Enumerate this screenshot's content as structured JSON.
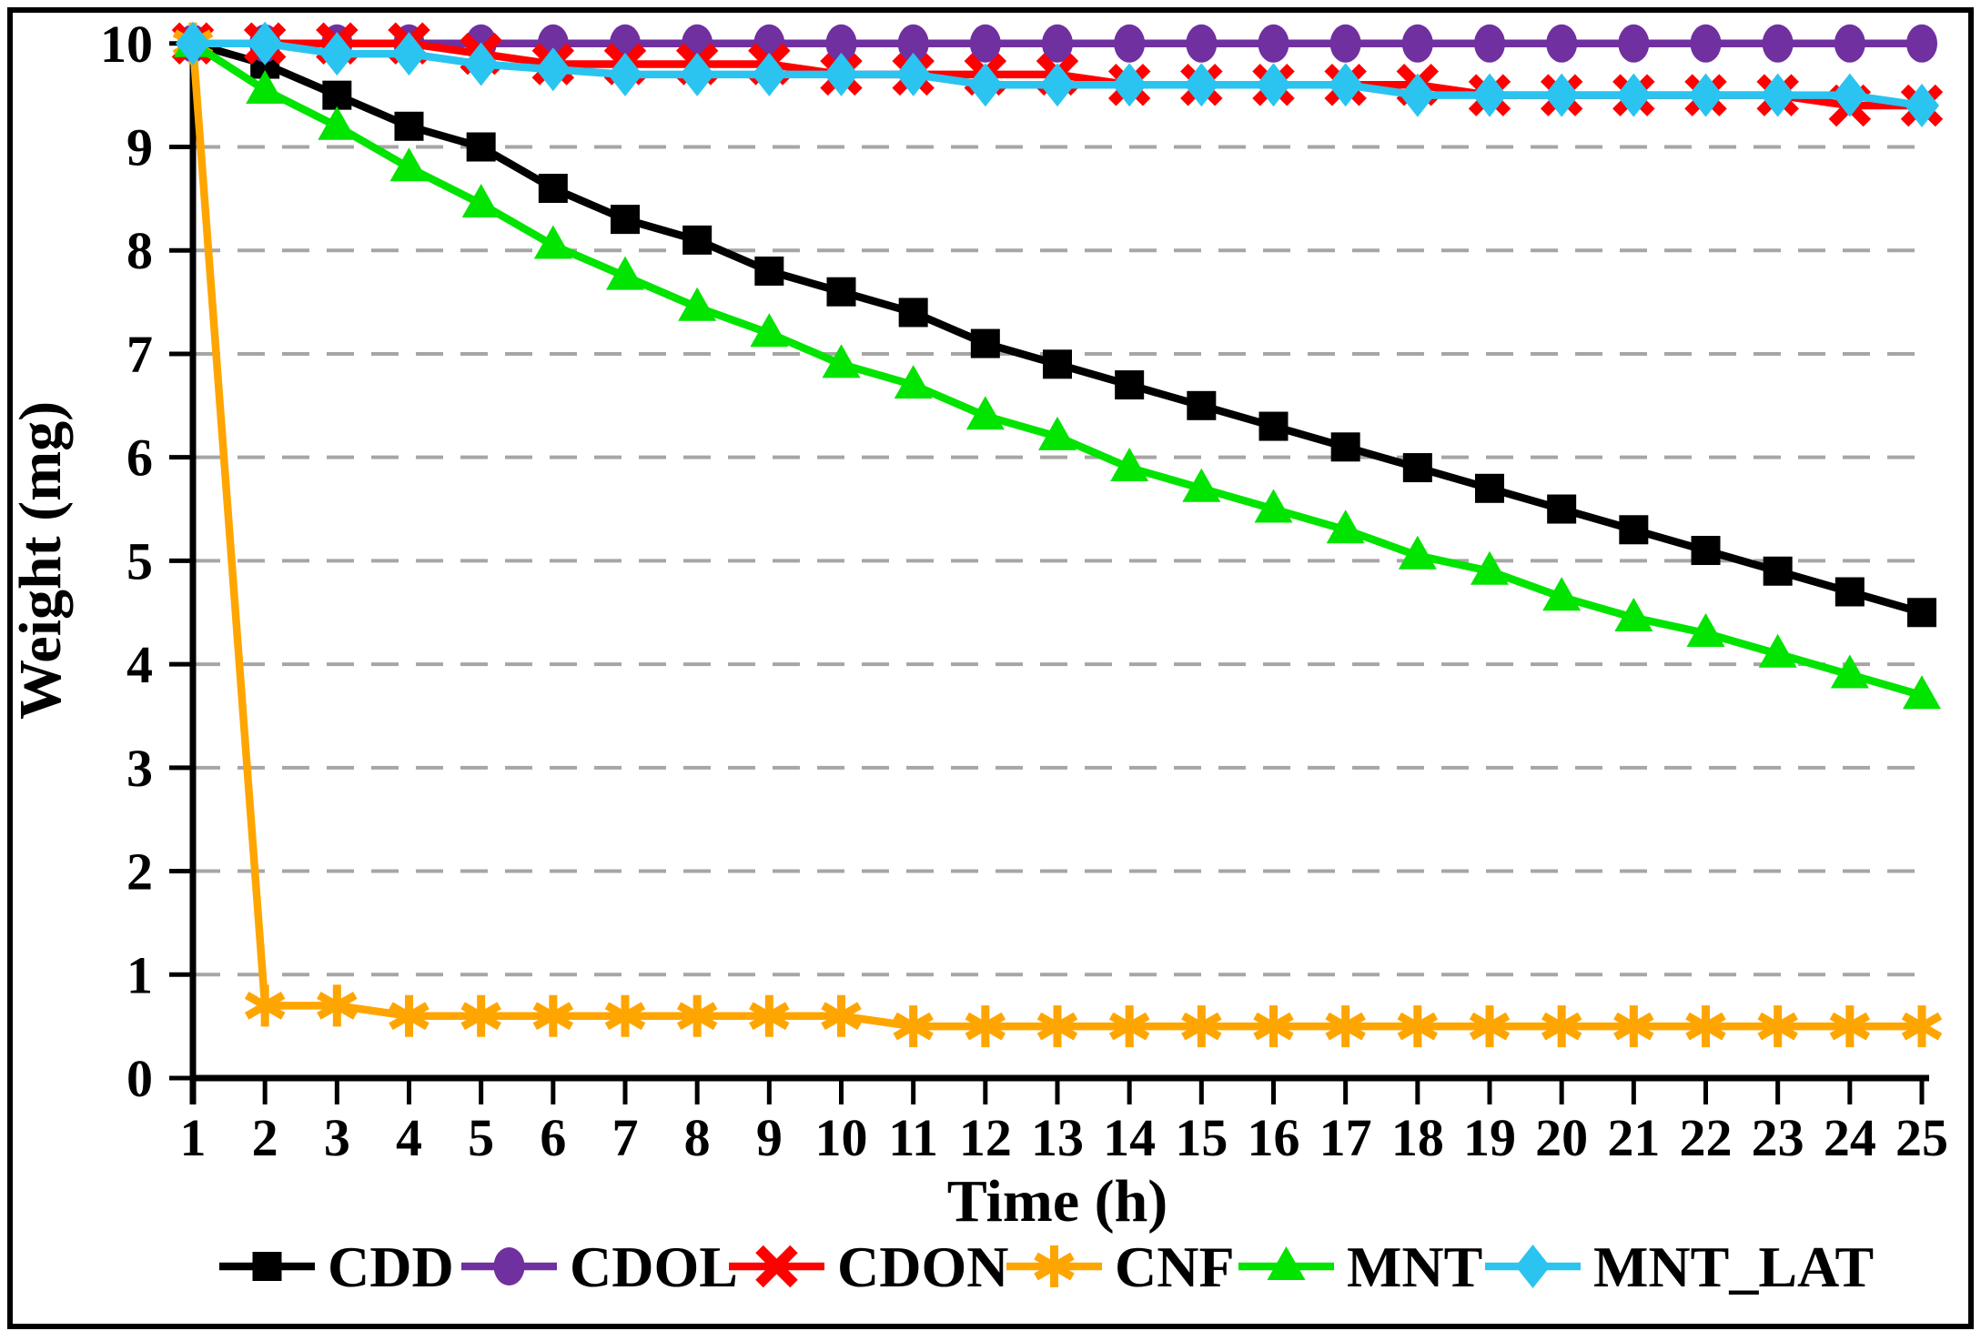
{
  "figure": {
    "background": "#ffffff",
    "border_color": "#000000",
    "border_width": 5
  },
  "chart_data": {
    "type": "line",
    "title": "",
    "xlabel": "Time (h)",
    "ylabel": "Weight (mg)",
    "x": [
      1,
      2,
      3,
      4,
      5,
      6,
      7,
      8,
      9,
      10,
      11,
      12,
      13,
      14,
      15,
      16,
      17,
      18,
      19,
      20,
      21,
      22,
      23,
      24,
      25
    ],
    "xlim": [
      1,
      25
    ],
    "ylim": [
      0,
      10
    ],
    "yticks": [
      0,
      1,
      2,
      3,
      4,
      5,
      6,
      7,
      8,
      9,
      10
    ],
    "grid": "horizontal-dashed",
    "gridline_color": "#A6A6A6",
    "axis_color": "#000000",
    "legend_position": "bottom",
    "series": [
      {
        "name": "CDD",
        "color": "#000000",
        "marker": "square",
        "values": [
          10,
          9.8,
          9.5,
          9.2,
          9,
          8.6,
          8.3,
          8.1,
          7.8,
          7.6,
          7.4,
          7.1,
          6.9,
          6.7,
          6.5,
          6.3,
          6.1,
          5.9,
          5.7,
          5.5,
          5.3,
          5.1,
          4.9,
          4.7,
          4.5
        ]
      },
      {
        "name": "CDOL",
        "color": "#7030A0",
        "marker": "circle",
        "values": [
          10,
          10,
          10,
          10,
          10,
          10,
          10,
          10,
          10,
          10,
          10,
          10,
          10,
          10,
          10,
          10,
          10,
          10,
          10,
          10,
          10,
          10,
          10,
          10,
          10
        ]
      },
      {
        "name": "CDON",
        "color": "#FF0000",
        "marker": "x",
        "values": [
          10,
          10,
          10,
          10,
          9.9,
          9.8,
          9.8,
          9.8,
          9.8,
          9.7,
          9.7,
          9.7,
          9.7,
          9.6,
          9.6,
          9.6,
          9.6,
          9.6,
          9.5,
          9.5,
          9.5,
          9.5,
          9.5,
          9.4,
          9.4
        ]
      },
      {
        "name": "CNF",
        "color": "#FFA500",
        "marker": "asterisk",
        "values": [
          10,
          0.7,
          0.7,
          0.6,
          0.6,
          0.6,
          0.6,
          0.6,
          0.6,
          0.6,
          0.5,
          0.5,
          0.5,
          0.5,
          0.5,
          0.5,
          0.5,
          0.5,
          0.5,
          0.5,
          0.5,
          0.5,
          0.5,
          0.5,
          0.5
        ]
      },
      {
        "name": "MNT",
        "color": "#00E400",
        "marker": "triangle",
        "values": [
          10,
          9.55,
          9.2,
          8.8,
          8.45,
          8.05,
          7.75,
          7.45,
          7.2,
          6.9,
          6.7,
          6.4,
          6.2,
          5.9,
          5.7,
          5.5,
          5.3,
          5.05,
          4.9,
          4.65,
          4.45,
          4.3,
          4.1,
          3.9,
          3.7
        ]
      },
      {
        "name": "MNT_LAT",
        "color": "#2BC4F0",
        "marker": "diamond",
        "values": [
          10,
          10,
          9.9,
          9.9,
          9.8,
          9.75,
          9.7,
          9.7,
          9.7,
          9.7,
          9.7,
          9.6,
          9.6,
          9.6,
          9.6,
          9.6,
          9.6,
          9.5,
          9.5,
          9.5,
          9.5,
          9.5,
          9.5,
          9.5,
          9.4
        ]
      }
    ]
  }
}
